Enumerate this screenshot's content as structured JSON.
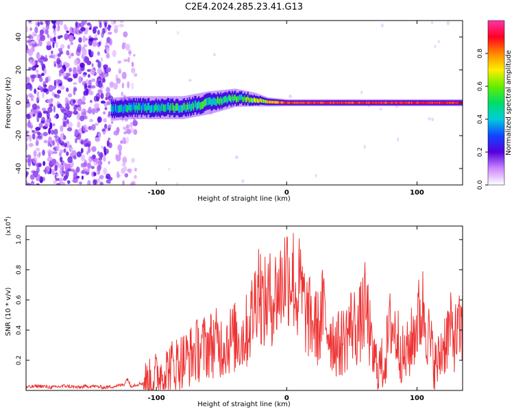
{
  "title": "C2E4.2024.285.23.41.G13",
  "chart_data": [
    {
      "type": "heatmap",
      "xlabel": "Height of straight line (km)",
      "ylabel": "Frequency (Hz)",
      "xlim": [
        -200,
        135
      ],
      "ylim": [
        -50,
        50
      ],
      "xticks": [
        -100,
        0,
        100
      ],
      "yticks": [
        -40,
        -20,
        0,
        20,
        40
      ],
      "colorbar": {
        "label": "Normalized spectral amplitude",
        "range": [
          0,
          1
        ],
        "ticks": [
          0.0,
          0.2,
          0.4,
          0.6,
          0.8
        ]
      },
      "ridge": [
        {
          "x": -135,
          "y": -4,
          "width": 5,
          "level": 0.4
        },
        {
          "x": -120,
          "y": -3,
          "width": 5,
          "level": 0.45
        },
        {
          "x": -100,
          "y": -3,
          "width": 5,
          "level": 0.45
        },
        {
          "x": -80,
          "y": -3,
          "width": 5,
          "level": 0.5
        },
        {
          "x": -60,
          "y": 0,
          "width": 5,
          "level": 0.5
        },
        {
          "x": -40,
          "y": 3,
          "width": 4,
          "level": 0.55
        },
        {
          "x": -25,
          "y": 2,
          "width": 3,
          "level": 0.6
        },
        {
          "x": -15,
          "y": 0.5,
          "width": 2,
          "level": 0.8
        },
        {
          "x": 0,
          "y": 0,
          "width": 1.5,
          "level": 0.95
        },
        {
          "x": 50,
          "y": 0,
          "width": 1.5,
          "level": 0.95
        },
        {
          "x": 100,
          "y": 0,
          "width": 1.5,
          "level": 0.95
        },
        {
          "x": 135,
          "y": 0,
          "width": 1.5,
          "level": 0.95
        }
      ],
      "noise_region_x": [
        -200,
        -115
      ]
    },
    {
      "type": "line",
      "xlabel": "Height of straight line (km)",
      "ylabel": "SNR (10 * v/v)",
      "yscale_label": "(x10",
      "yscale_exp": "4",
      "xlim": [
        -200,
        135
      ],
      "ylim": [
        0,
        1.09
      ],
      "xticks": [
        -100,
        0,
        100
      ],
      "yticks": [
        0.2,
        0.4,
        0.6,
        0.8,
        1.0
      ],
      "series": [
        {
          "color": "#ee3333",
          "x": [
            -200,
            -190,
            -180,
            -170,
            -160,
            -150,
            -140,
            -130,
            -125,
            -122,
            -120,
            -115,
            -110,
            -105,
            -100,
            -95,
            -90,
            -85,
            -80,
            -75,
            -70,
            -65,
            -60,
            -55,
            -50,
            -45,
            -40,
            -35,
            -30,
            -25,
            -22,
            -20,
            -18,
            -15,
            -10,
            -5,
            0,
            5,
            8,
            10,
            15,
            20,
            25,
            28,
            30,
            35,
            40,
            45,
            50,
            55,
            60,
            63,
            65,
            70,
            75,
            80,
            85,
            90,
            95,
            100,
            105,
            110,
            115,
            120,
            125,
            130,
            135
          ],
          "y": [
            0.02,
            0.03,
            0.02,
            0.03,
            0.02,
            0.03,
            0.02,
            0.03,
            0.04,
            0.08,
            0.03,
            0.04,
            0.05,
            0.06,
            0.1,
            0.12,
            0.15,
            0.18,
            0.2,
            0.22,
            0.26,
            0.28,
            0.3,
            0.32,
            0.3,
            0.33,
            0.35,
            0.34,
            0.4,
            0.55,
            0.75,
            0.65,
            0.55,
            0.6,
            0.62,
            0.68,
            0.8,
            0.75,
            0.6,
            0.7,
            0.5,
            0.45,
            0.4,
            0.55,
            0.45,
            0.35,
            0.3,
            0.35,
            0.45,
            0.4,
            0.55,
            0.45,
            0.25,
            0.15,
            0.18,
            0.45,
            0.35,
            0.2,
            0.3,
            0.45,
            0.55,
            0.3,
            0.15,
            0.3,
            0.4,
            0.35,
            0.42
          ]
        }
      ]
    }
  ]
}
